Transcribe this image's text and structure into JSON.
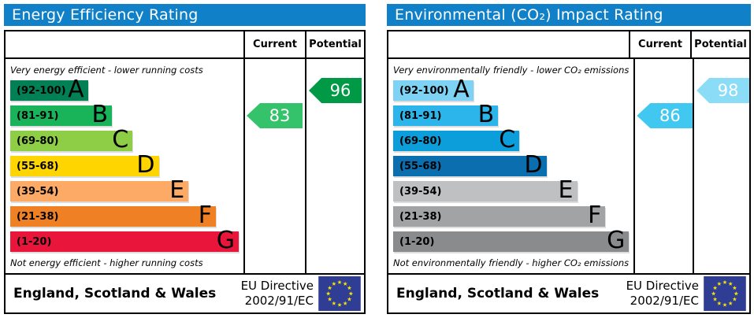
{
  "page": {
    "background": "#ffffff"
  },
  "eu_flag": {
    "bg": "#2f3d94",
    "star_color": "#f3e200"
  },
  "chart_data": [
    {
      "id": "energy-efficiency",
      "type": "bar",
      "title": "Energy Efficiency Rating",
      "title_bar_color": "#1080c8",
      "column_headers": [
        "Current",
        "Potential"
      ],
      "top_caption": "Very energy efficient - lower running costs",
      "bottom_caption": "Not energy efficient - higher running costs",
      "axis_range": [
        1,
        100
      ],
      "bands": [
        {
          "letter": "A",
          "label": "(92-100)",
          "min": 92,
          "max": 100,
          "color": "#008054",
          "width_pct": 34
        },
        {
          "letter": "B",
          "label": "(81-91)",
          "min": 81,
          "max": 91,
          "color": "#19b459",
          "width_pct": 44.5
        },
        {
          "letter": "C",
          "label": "(69-80)",
          "min": 69,
          "max": 80,
          "color": "#8dce46",
          "width_pct": 53.5
        },
        {
          "letter": "D",
          "label": "(55-68)",
          "min": 55,
          "max": 68,
          "color": "#ffd500",
          "width_pct": 65
        },
        {
          "letter": "E",
          "label": "(39-54)",
          "min": 39,
          "max": 54,
          "color": "#fcaa65",
          "width_pct": 78
        },
        {
          "letter": "F",
          "label": "(21-38)",
          "min": 21,
          "max": 38,
          "color": "#ef8023",
          "width_pct": 90
        },
        {
          "letter": "G",
          "label": "(1-20)",
          "min": 1,
          "max": 20,
          "color": "#e9153b",
          "width_pct": 100
        }
      ],
      "current": {
        "value": 83,
        "band": "B",
        "arrow_color": "#34c26b"
      },
      "potential": {
        "value": 96,
        "band": "A",
        "arrow_color": "#009a46"
      },
      "footer": {
        "region": "England, Scotland & Wales",
        "directive_line1": "EU Directive",
        "directive_line2": "2002/91/EC"
      }
    },
    {
      "id": "environmental-co2-impact",
      "type": "bar",
      "title": "Environmental (CO₂) Impact Rating",
      "title_bar_color": "#1080c8",
      "column_headers": [
        "Current",
        "Potential"
      ],
      "top_caption": "Very environmentally friendly - lower CO₂ emissions",
      "bottom_caption": "Not environmentally friendly - higher CO₂ emissions",
      "axis_range": [
        1,
        100
      ],
      "bands": [
        {
          "letter": "A",
          "label": "(92-100)",
          "min": 92,
          "max": 100,
          "color": "#7ed3f5",
          "width_pct": 34
        },
        {
          "letter": "B",
          "label": "(81-91)",
          "min": 81,
          "max": 91,
          "color": "#2cb5ea",
          "width_pct": 44.5
        },
        {
          "letter": "C",
          "label": "(69-80)",
          "min": 69,
          "max": 80,
          "color": "#0c9ddb",
          "width_pct": 53.5
        },
        {
          "letter": "D",
          "label": "(55-68)",
          "min": 55,
          "max": 68,
          "color": "#0b6eae",
          "width_pct": 65
        },
        {
          "letter": "E",
          "label": "(39-54)",
          "min": 39,
          "max": 54,
          "color": "#bec0c2",
          "width_pct": 78
        },
        {
          "letter": "F",
          "label": "(21-38)",
          "min": 21,
          "max": 38,
          "color": "#a1a3a5",
          "width_pct": 90
        },
        {
          "letter": "G",
          "label": "(1-20)",
          "min": 1,
          "max": 20,
          "color": "#898b8d",
          "width_pct": 100
        }
      ],
      "current": {
        "value": 86,
        "band": "B",
        "arrow_color": "#41c8f1"
      },
      "potential": {
        "value": 98,
        "band": "A",
        "arrow_color": "#8adcf7"
      },
      "footer": {
        "region": "England, Scotland & Wales",
        "directive_line1": "EU Directive",
        "directive_line2": "2002/91/EC"
      }
    }
  ]
}
